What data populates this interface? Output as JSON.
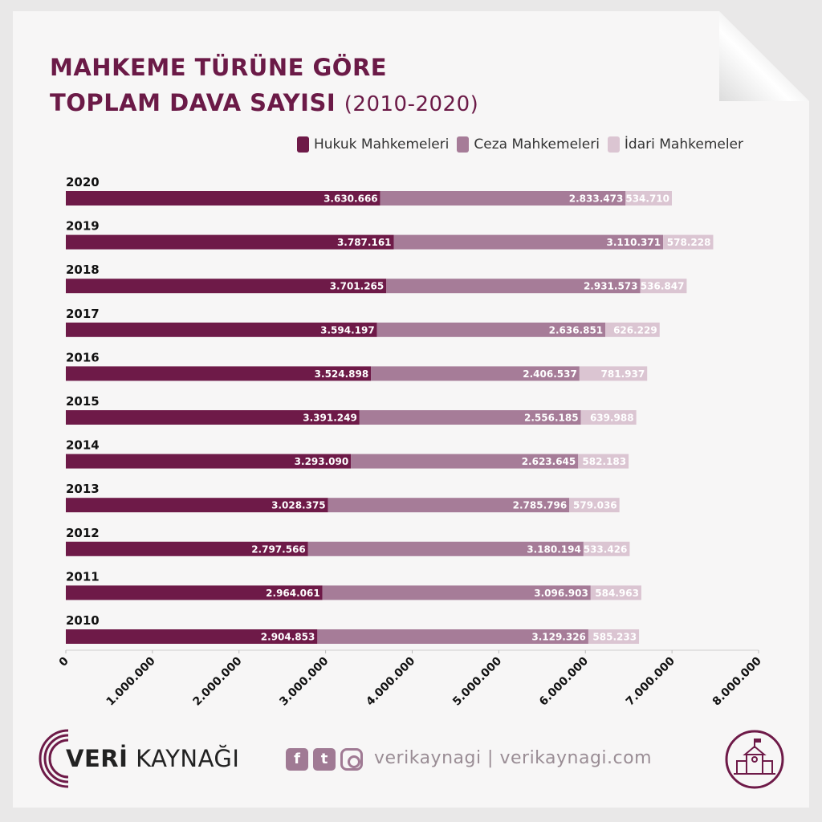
{
  "header": {
    "title_line1": "MAHKEME TÜRÜNE GÖRE",
    "title_line2": "TOPLAM DAVA SAYISI",
    "title_years": "(2010-2020)"
  },
  "colors": {
    "hukuk": "#6e1a48",
    "ceza": "#a67c98",
    "idari": "#dbc5d2",
    "title": "#6b1a47"
  },
  "chart_data": {
    "type": "bar",
    "orientation": "horizontal",
    "stacked": true,
    "categories": [
      "2020",
      "2019",
      "2018",
      "2017",
      "2016",
      "2015",
      "2014",
      "2013",
      "2012",
      "2011",
      "2010"
    ],
    "series": [
      {
        "name": "Hukuk Mahkemeleri",
        "values": [
          3630666,
          3787161,
          3701265,
          3594197,
          3524898,
          3391249,
          3293090,
          3028375,
          2797566,
          2964061,
          2904853
        ],
        "labels": [
          "3.630.666",
          "3.787.161",
          "3.701.265",
          "3.594.197",
          "3.524.898",
          "3.391.249",
          "3.293.090",
          "3.028.375",
          "2.797.566",
          "2.964.061",
          "2.904.853"
        ]
      },
      {
        "name": "Ceza Mahkemeleri",
        "values": [
          2833473,
          3110371,
          2931573,
          2636851,
          2406537,
          2556185,
          2623645,
          2785796,
          3180194,
          3096903,
          3129326
        ],
        "labels": [
          "2.833.473",
          "3.110.371",
          "2.931.573",
          "2.636.851",
          "2.406.537",
          "2.556.185",
          "2.623.645",
          "2.785.796",
          "3.180.194",
          "3.096.903",
          "3.129.326"
        ]
      },
      {
        "name": "İdari Mahkemeler",
        "values": [
          534710,
          578228,
          536847,
          626229,
          781937,
          639988,
          582183,
          579036,
          533426,
          584963,
          585233
        ],
        "labels": [
          "534.710",
          "578.228",
          "536.847",
          "626.229",
          "781.937",
          "639.988",
          "582.183",
          "579.036",
          "533.426",
          "584.963",
          "585.233"
        ]
      }
    ],
    "xlim": [
      0,
      8000000
    ],
    "xticks": [
      0,
      1000000,
      2000000,
      3000000,
      4000000,
      5000000,
      6000000,
      7000000,
      8000000
    ],
    "xtick_labels": [
      "0",
      "1.000.000",
      "2.000.000",
      "3.000.000",
      "4.000.000",
      "5.000.000",
      "6.000.000",
      "7.000.000",
      "8.000.000"
    ],
    "grid": false,
    "legend_position": "top-right"
  },
  "footer": {
    "brand_bold": "VERİ",
    "brand_rest": " KAYNAĞI",
    "site": "verikaynagi | verikaynagi.com",
    "icons": [
      "facebook-icon",
      "twitter-icon",
      "instagram-icon"
    ]
  }
}
